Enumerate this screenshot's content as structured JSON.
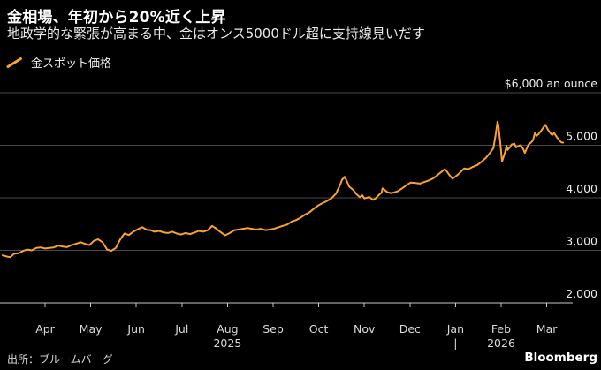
{
  "header": {
    "title": "金相場、年初から20%近く上昇",
    "subtitle": "地政学的な緊張が高まる中、金はオンス5000ドル超に支持線見いだす"
  },
  "legend": {
    "label": "金スポット価格",
    "marker_icon": "diagonal-line-swatch"
  },
  "footer": {
    "source": "出所：ブルームバーグ",
    "brand": "Bloomberg"
  },
  "colors": {
    "background": "#000000",
    "series": "#F8A232",
    "gridline": "#4a4a4a",
    "axis": "#c9c9c9",
    "tick_label": "#d9d9d9",
    "value_label": "#ececec",
    "title": "#ffffff"
  },
  "chart_data": {
    "type": "line",
    "title": "金スポット価格 (Gold spot price)",
    "ylabel": "$ an ounce",
    "y_axis": {
      "min": 2000,
      "max": 6000,
      "ticks": [
        {
          "value": 6000,
          "label": "$6,000 an ounce"
        },
        {
          "value": 5000,
          "label": "5,000"
        },
        {
          "value": 4000,
          "label": "4,000"
        },
        {
          "value": 3000,
          "label": "3,000"
        },
        {
          "value": 2000,
          "label": "2,000"
        }
      ]
    },
    "x_axis": {
      "unit": "months_from_apr_2025",
      "tick_labels": [
        "Apr",
        "May",
        "Jun",
        "Jul",
        "Aug",
        "Sep",
        "Oct",
        "Nov",
        "Dec",
        "Jan",
        "Feb",
        "Mar"
      ],
      "year_labels": [
        {
          "t": 4,
          "label": "2025"
        },
        {
          "t": 10,
          "label": "2026"
        }
      ],
      "year_divider": {
        "t": 9,
        "label": "|"
      },
      "domain": [
        -0.95,
        11.4
      ]
    },
    "grid": true,
    "legend_position": "top-left",
    "series": [
      {
        "name": "金スポット価格",
        "color": "#F8A232",
        "points": [
          [
            -0.93,
            2905
          ],
          [
            -0.83,
            2880
          ],
          [
            -0.76,
            2870
          ],
          [
            -0.68,
            2935
          ],
          [
            -0.58,
            2945
          ],
          [
            -0.48,
            2990
          ],
          [
            -0.39,
            3015
          ],
          [
            -0.29,
            3000
          ],
          [
            -0.19,
            3045
          ],
          [
            -0.1,
            3055
          ],
          [
            0.0,
            3035
          ],
          [
            0.1,
            3045
          ],
          [
            0.19,
            3055
          ],
          [
            0.29,
            3090
          ],
          [
            0.39,
            3070
          ],
          [
            0.48,
            3060
          ],
          [
            0.58,
            3100
          ],
          [
            0.68,
            3125
          ],
          [
            0.78,
            3155
          ],
          [
            0.87,
            3125
          ],
          [
            0.97,
            3100
          ],
          [
            1.07,
            3180
          ],
          [
            1.16,
            3210
          ],
          [
            1.26,
            3155
          ],
          [
            1.36,
            3015
          ],
          [
            1.45,
            2990
          ],
          [
            1.55,
            3045
          ],
          [
            1.65,
            3210
          ],
          [
            1.74,
            3320
          ],
          [
            1.84,
            3290
          ],
          [
            1.94,
            3360
          ],
          [
            2.03,
            3400
          ],
          [
            2.13,
            3440
          ],
          [
            2.23,
            3390
          ],
          [
            2.31,
            3385
          ],
          [
            2.4,
            3355
          ],
          [
            2.5,
            3370
          ],
          [
            2.6,
            3340
          ],
          [
            2.69,
            3330
          ],
          [
            2.79,
            3355
          ],
          [
            2.89,
            3320
          ],
          [
            2.98,
            3300
          ],
          [
            3.08,
            3330
          ],
          [
            3.18,
            3310
          ],
          [
            3.28,
            3340
          ],
          [
            3.37,
            3370
          ],
          [
            3.47,
            3355
          ],
          [
            3.57,
            3385
          ],
          [
            3.66,
            3465
          ],
          [
            3.76,
            3410
          ],
          [
            3.86,
            3340
          ],
          [
            3.95,
            3285
          ],
          [
            4.05,
            3330
          ],
          [
            4.15,
            3385
          ],
          [
            4.24,
            3395
          ],
          [
            4.34,
            3410
          ],
          [
            4.44,
            3425
          ],
          [
            4.53,
            3410
          ],
          [
            4.63,
            3395
          ],
          [
            4.73,
            3410
          ],
          [
            4.83,
            3385
          ],
          [
            4.92,
            3395
          ],
          [
            5.02,
            3410
          ],
          [
            5.12,
            3440
          ],
          [
            5.21,
            3465
          ],
          [
            5.31,
            3490
          ],
          [
            5.41,
            3550
          ],
          [
            5.5,
            3575
          ],
          [
            5.6,
            3620
          ],
          [
            5.7,
            3680
          ],
          [
            5.79,
            3720
          ],
          [
            5.89,
            3790
          ],
          [
            5.99,
            3855
          ],
          [
            6.09,
            3900
          ],
          [
            6.18,
            3940
          ],
          [
            6.28,
            3990
          ],
          [
            6.38,
            4080
          ],
          [
            6.47,
            4250
          ],
          [
            6.51,
            4340
          ],
          [
            6.57,
            4400
          ],
          [
            6.61,
            4330
          ],
          [
            6.67,
            4210
          ],
          [
            6.76,
            4150
          ],
          [
            6.82,
            4075
          ],
          [
            6.9,
            4015
          ],
          [
            6.96,
            4045
          ],
          [
            7.0,
            3990
          ],
          [
            7.05,
            4000
          ],
          [
            7.11,
            4015
          ],
          [
            7.19,
            3960
          ],
          [
            7.25,
            3990
          ],
          [
            7.31,
            4045
          ],
          [
            7.38,
            4100
          ],
          [
            7.4,
            4180
          ],
          [
            7.44,
            4155
          ],
          [
            7.5,
            4110
          ],
          [
            7.58,
            4090
          ],
          [
            7.64,
            4100
          ],
          [
            7.73,
            4125
          ],
          [
            7.83,
            4180
          ],
          [
            7.93,
            4245
          ],
          [
            8.02,
            4290
          ],
          [
            8.12,
            4280
          ],
          [
            8.22,
            4270
          ],
          [
            8.31,
            4300
          ],
          [
            8.41,
            4330
          ],
          [
            8.51,
            4370
          ],
          [
            8.6,
            4430
          ],
          [
            8.7,
            4500
          ],
          [
            8.76,
            4545
          ],
          [
            8.8,
            4515
          ],
          [
            8.86,
            4440
          ],
          [
            8.93,
            4365
          ],
          [
            8.99,
            4400
          ],
          [
            9.05,
            4440
          ],
          [
            9.11,
            4490
          ],
          [
            9.19,
            4560
          ],
          [
            9.28,
            4545
          ],
          [
            9.38,
            4590
          ],
          [
            9.48,
            4625
          ],
          [
            9.57,
            4685
          ],
          [
            9.67,
            4765
          ],
          [
            9.77,
            4870
          ],
          [
            9.83,
            4945
          ],
          [
            9.88,
            5200
          ],
          [
            9.92,
            5450
          ],
          [
            9.94,
            5380
          ],
          [
            9.98,
            5050
          ],
          [
            10.02,
            4690
          ],
          [
            10.08,
            4850
          ],
          [
            10.12,
            4990
          ],
          [
            10.14,
            4910
          ],
          [
            10.19,
            4960
          ],
          [
            10.23,
            5015
          ],
          [
            10.29,
            5030
          ],
          [
            10.33,
            4960
          ],
          [
            10.39,
            4990
          ],
          [
            10.43,
            5000
          ],
          [
            10.48,
            4935
          ],
          [
            10.52,
            4855
          ],
          [
            10.56,
            4935
          ],
          [
            10.6,
            5015
          ],
          [
            10.66,
            5055
          ],
          [
            10.7,
            5100
          ],
          [
            10.74,
            5230
          ],
          [
            10.78,
            5180
          ],
          [
            10.83,
            5220
          ],
          [
            10.89,
            5290
          ],
          [
            10.93,
            5345
          ],
          [
            10.97,
            5390
          ],
          [
            11.03,
            5290
          ],
          [
            11.09,
            5220
          ],
          [
            11.12,
            5195
          ],
          [
            11.16,
            5235
          ],
          [
            11.22,
            5155
          ],
          [
            11.28,
            5090
          ],
          [
            11.32,
            5055
          ],
          [
            11.36,
            5050
          ]
        ]
      }
    ]
  }
}
